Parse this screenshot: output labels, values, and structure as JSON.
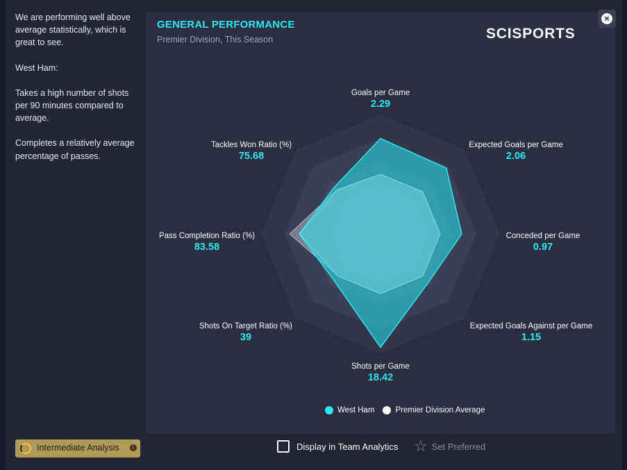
{
  "sidebar": {
    "paragraphs": [
      "We are performing well above average statistically, which is great to see.",
      "West Ham:",
      "Takes a high number of shots per 90 minutes compared to average.",
      "Completes a relatively average percentage of passes."
    ]
  },
  "panel": {
    "title": "GENERAL PERFORMANCE",
    "subtitle": "Premier Division, This Season",
    "brand": "SCISPORTS"
  },
  "close_label": "×",
  "chart_data": {
    "type": "radar",
    "title": "GENERAL PERFORMANCE",
    "subtitle": "Premier Division, This Season",
    "axes": [
      "Goals per Game",
      "Expected Goals per Game",
      "Conceded per Game",
      "Expected Goals Against per Game",
      "Shots per Game",
      "Shots On Target Ratio (%)",
      "Pass Completion Ratio (%)",
      "Tackles Won Ratio (%)"
    ],
    "value_labels": [
      "2.29",
      "2.06",
      "0.97",
      "1.15",
      "18.42",
      "39",
      "83.58",
      "75.68"
    ],
    "series": [
      {
        "name": "West Ham",
        "color": "#2ee6f2",
        "values": [
          2.29,
          2.06,
          0.97,
          1.15,
          18.42,
          39,
          83.58,
          75.68
        ],
        "normalized": [
          0.8,
          0.78,
          0.68,
          0.57,
          0.95,
          0.55,
          0.68,
          0.55
        ]
      },
      {
        "name": "Premier Division Average",
        "color": "#ffffff",
        "normalized": [
          0.5,
          0.5,
          0.5,
          0.5,
          0.5,
          0.5,
          0.76,
          0.52
        ]
      }
    ],
    "legend_position": "bottom"
  },
  "legend": {
    "items": [
      {
        "label": "West Ham",
        "color": "#2ee6f2"
      },
      {
        "label": "Premier Division Average",
        "color": "#ffffff"
      }
    ]
  },
  "footer": {
    "analysis_label": "Intermediate Analysis",
    "analysis_info": "i",
    "checkbox_label": "Display in Team Analytics",
    "checkbox_checked": false,
    "preferred_label": "Set Preferred"
  }
}
